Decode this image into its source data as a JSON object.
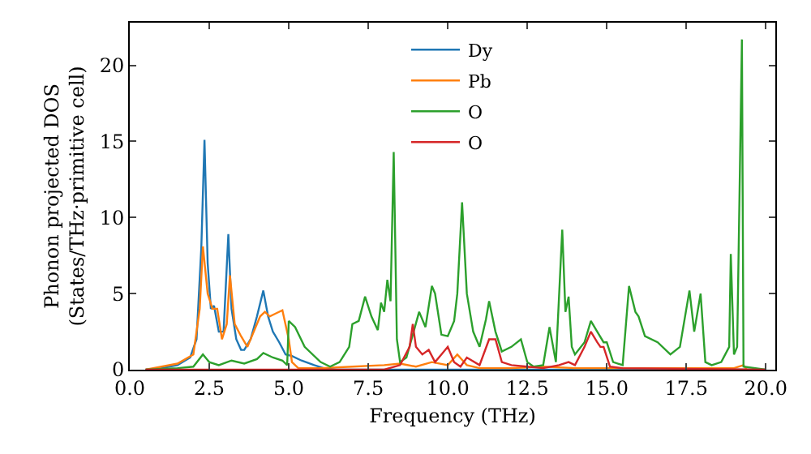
{
  "chart_data": {
    "type": "line",
    "xlabel": "Frequency (THz)",
    "ylabel": "Phonon projected DOS\n(States/THz·primitive cell)",
    "xlim": [
      0,
      20.3
    ],
    "xticks": [
      {
        "value": 0,
        "label": "0.0"
      },
      {
        "value": 2.5,
        "label": "2.5"
      },
      {
        "value": 5,
        "label": "5.0"
      },
      {
        "value": 7.5,
        "label": "7.5"
      },
      {
        "value": 10,
        "label": "10.0"
      },
      {
        "value": 12.5,
        "label": "12.5"
      },
      {
        "value": 15,
        "label": "15.0"
      },
      {
        "value": 17.5,
        "label": "17.5"
      },
      {
        "value": 20,
        "label": "20.0"
      }
    ],
    "ylim": [
      0,
      22.8
    ],
    "yticks": [
      0,
      5,
      10,
      15,
      20
    ],
    "grid": false,
    "legend": "top",
    "marker": "none",
    "line_style": "solid",
    "series": [
      {
        "name": "Dy",
        "color": "#1f77b4",
        "x": [
          0.5,
          1.0,
          1.5,
          1.9,
          2.1,
          2.25,
          2.35,
          2.45,
          2.55,
          2.65,
          2.8,
          2.95,
          3.1,
          3.2,
          3.35,
          3.5,
          3.6,
          3.8,
          4.0,
          4.2,
          4.35,
          4.5,
          4.7,
          4.9,
          5.1,
          5.4,
          5.8,
          6.1,
          6.5,
          7,
          20
        ],
        "values": [
          0,
          0.1,
          0.3,
          0.8,
          2,
          8,
          15.1,
          7,
          4,
          4.2,
          2.5,
          2.5,
          8.9,
          4,
          2,
          1.3,
          1.3,
          2,
          3.5,
          5.2,
          3.5,
          2.5,
          1.8,
          1,
          0.9,
          0.6,
          0.3,
          0.1,
          0,
          0,
          0
        ]
      },
      {
        "name": "Pb",
        "color": "#ff7f0e",
        "x": [
          0.5,
          1.5,
          2.0,
          2.2,
          2.3,
          2.45,
          2.6,
          2.75,
          2.9,
          3.05,
          3.15,
          3.3,
          3.5,
          3.7,
          3.9,
          4.1,
          4.25,
          4.4,
          4.6,
          4.8,
          5.0,
          5.1,
          5.3,
          6,
          7,
          8,
          8.5,
          9,
          9.5,
          10,
          10.3,
          10.6,
          11,
          12,
          13,
          14,
          15,
          17,
          19,
          19.3,
          19.4
        ],
        "values": [
          0,
          0.4,
          1,
          4,
          8.1,
          5,
          4,
          4,
          2,
          3,
          6.2,
          3,
          2.2,
          1.5,
          2.5,
          3.5,
          3.8,
          3.5,
          3.7,
          3.9,
          2,
          0.5,
          0.1,
          0.1,
          0.2,
          0.3,
          0.4,
          0.2,
          0.5,
          0.3,
          1,
          0.3,
          0.1,
          0.1,
          0.2,
          0.1,
          0.1,
          0.1,
          0.1,
          0.3,
          0
        ]
      },
      {
        "name": "O",
        "color": "#2ca02c",
        "x": [
          0.5,
          1.5,
          2.0,
          2.3,
          2.5,
          2.8,
          3.2,
          3.6,
          4.0,
          4.2,
          4.5,
          4.8,
          4.95,
          5.0,
          5.2,
          5.5,
          6.0,
          6.3,
          6.6,
          6.9,
          7.0,
          7.2,
          7.4,
          7.6,
          7.8,
          7.9,
          8.0,
          8.1,
          8.2,
          8.3,
          8.4,
          8.5,
          8.7,
          8.9,
          9.1,
          9.3,
          9.5,
          9.6,
          9.8,
          10.0,
          10.2,
          10.3,
          10.45,
          10.6,
          10.8,
          11.0,
          11.2,
          11.3,
          11.5,
          11.7,
          12.0,
          12.3,
          12.5,
          12.7,
          13.0,
          13.2,
          13.4,
          13.6,
          13.7,
          13.8,
          13.9,
          14.0,
          14.3,
          14.5,
          14.7,
          14.9,
          15.0,
          15.2,
          15.5,
          15.7,
          15.9,
          16.0,
          16.2,
          16.6,
          17.0,
          17.3,
          17.6,
          17.75,
          17.95,
          18.1,
          18.3,
          18.6,
          18.85,
          18.9,
          19.0,
          19.1,
          19.25,
          19.3,
          20
        ],
        "values": [
          0,
          0.1,
          0.2,
          1,
          0.5,
          0.3,
          0.6,
          0.4,
          0.7,
          1.1,
          0.8,
          0.6,
          0.3,
          3.2,
          2.8,
          1.5,
          0.5,
          0.2,
          0.5,
          1.5,
          3,
          3.2,
          4.8,
          3.5,
          2.6,
          4.4,
          3.8,
          5.9,
          4.5,
          14.3,
          2,
          0.5,
          0.8,
          2.3,
          3.8,
          2.8,
          5.5,
          5,
          2.3,
          2.2,
          3.2,
          5,
          11,
          5,
          2.5,
          1.5,
          3.3,
          4.5,
          2.5,
          1.2,
          1.5,
          2,
          0.5,
          0.2,
          0.3,
          2.8,
          0.5,
          9.2,
          3.8,
          4.8,
          1.5,
          1,
          1.8,
          3.2,
          2.5,
          1.8,
          1.8,
          0.5,
          0.3,
          5.5,
          3.8,
          3.5,
          2.2,
          1.8,
          1,
          1.5,
          5.2,
          2.5,
          5,
          0.5,
          0.3,
          0.5,
          1.5,
          7.6,
          1,
          1.5,
          21.7,
          0.2,
          0
        ]
      },
      {
        "name": "O",
        "color": "#d62728",
        "x": [
          0.5,
          8,
          8.5,
          8.8,
          8.9,
          9.0,
          9.2,
          9.4,
          9.6,
          9.8,
          10.0,
          10.2,
          10.4,
          10.6,
          11.0,
          11.3,
          11.5,
          11.7,
          12,
          12.5,
          13,
          13.5,
          13.8,
          14.0,
          14.3,
          14.5,
          14.7,
          14.8,
          14.9,
          15.1,
          15.5,
          20
        ],
        "values": [
          0,
          0,
          0.3,
          1.5,
          3,
          1.5,
          1,
          1.3,
          0.5,
          1,
          1.5,
          0.5,
          0.2,
          0.8,
          0.3,
          2,
          2,
          0.5,
          0.3,
          0.2,
          0.1,
          0.3,
          0.5,
          0.3,
          1.5,
          2.5,
          1.8,
          1.5,
          1.5,
          0.2,
          0.1,
          0
        ]
      }
    ]
  }
}
